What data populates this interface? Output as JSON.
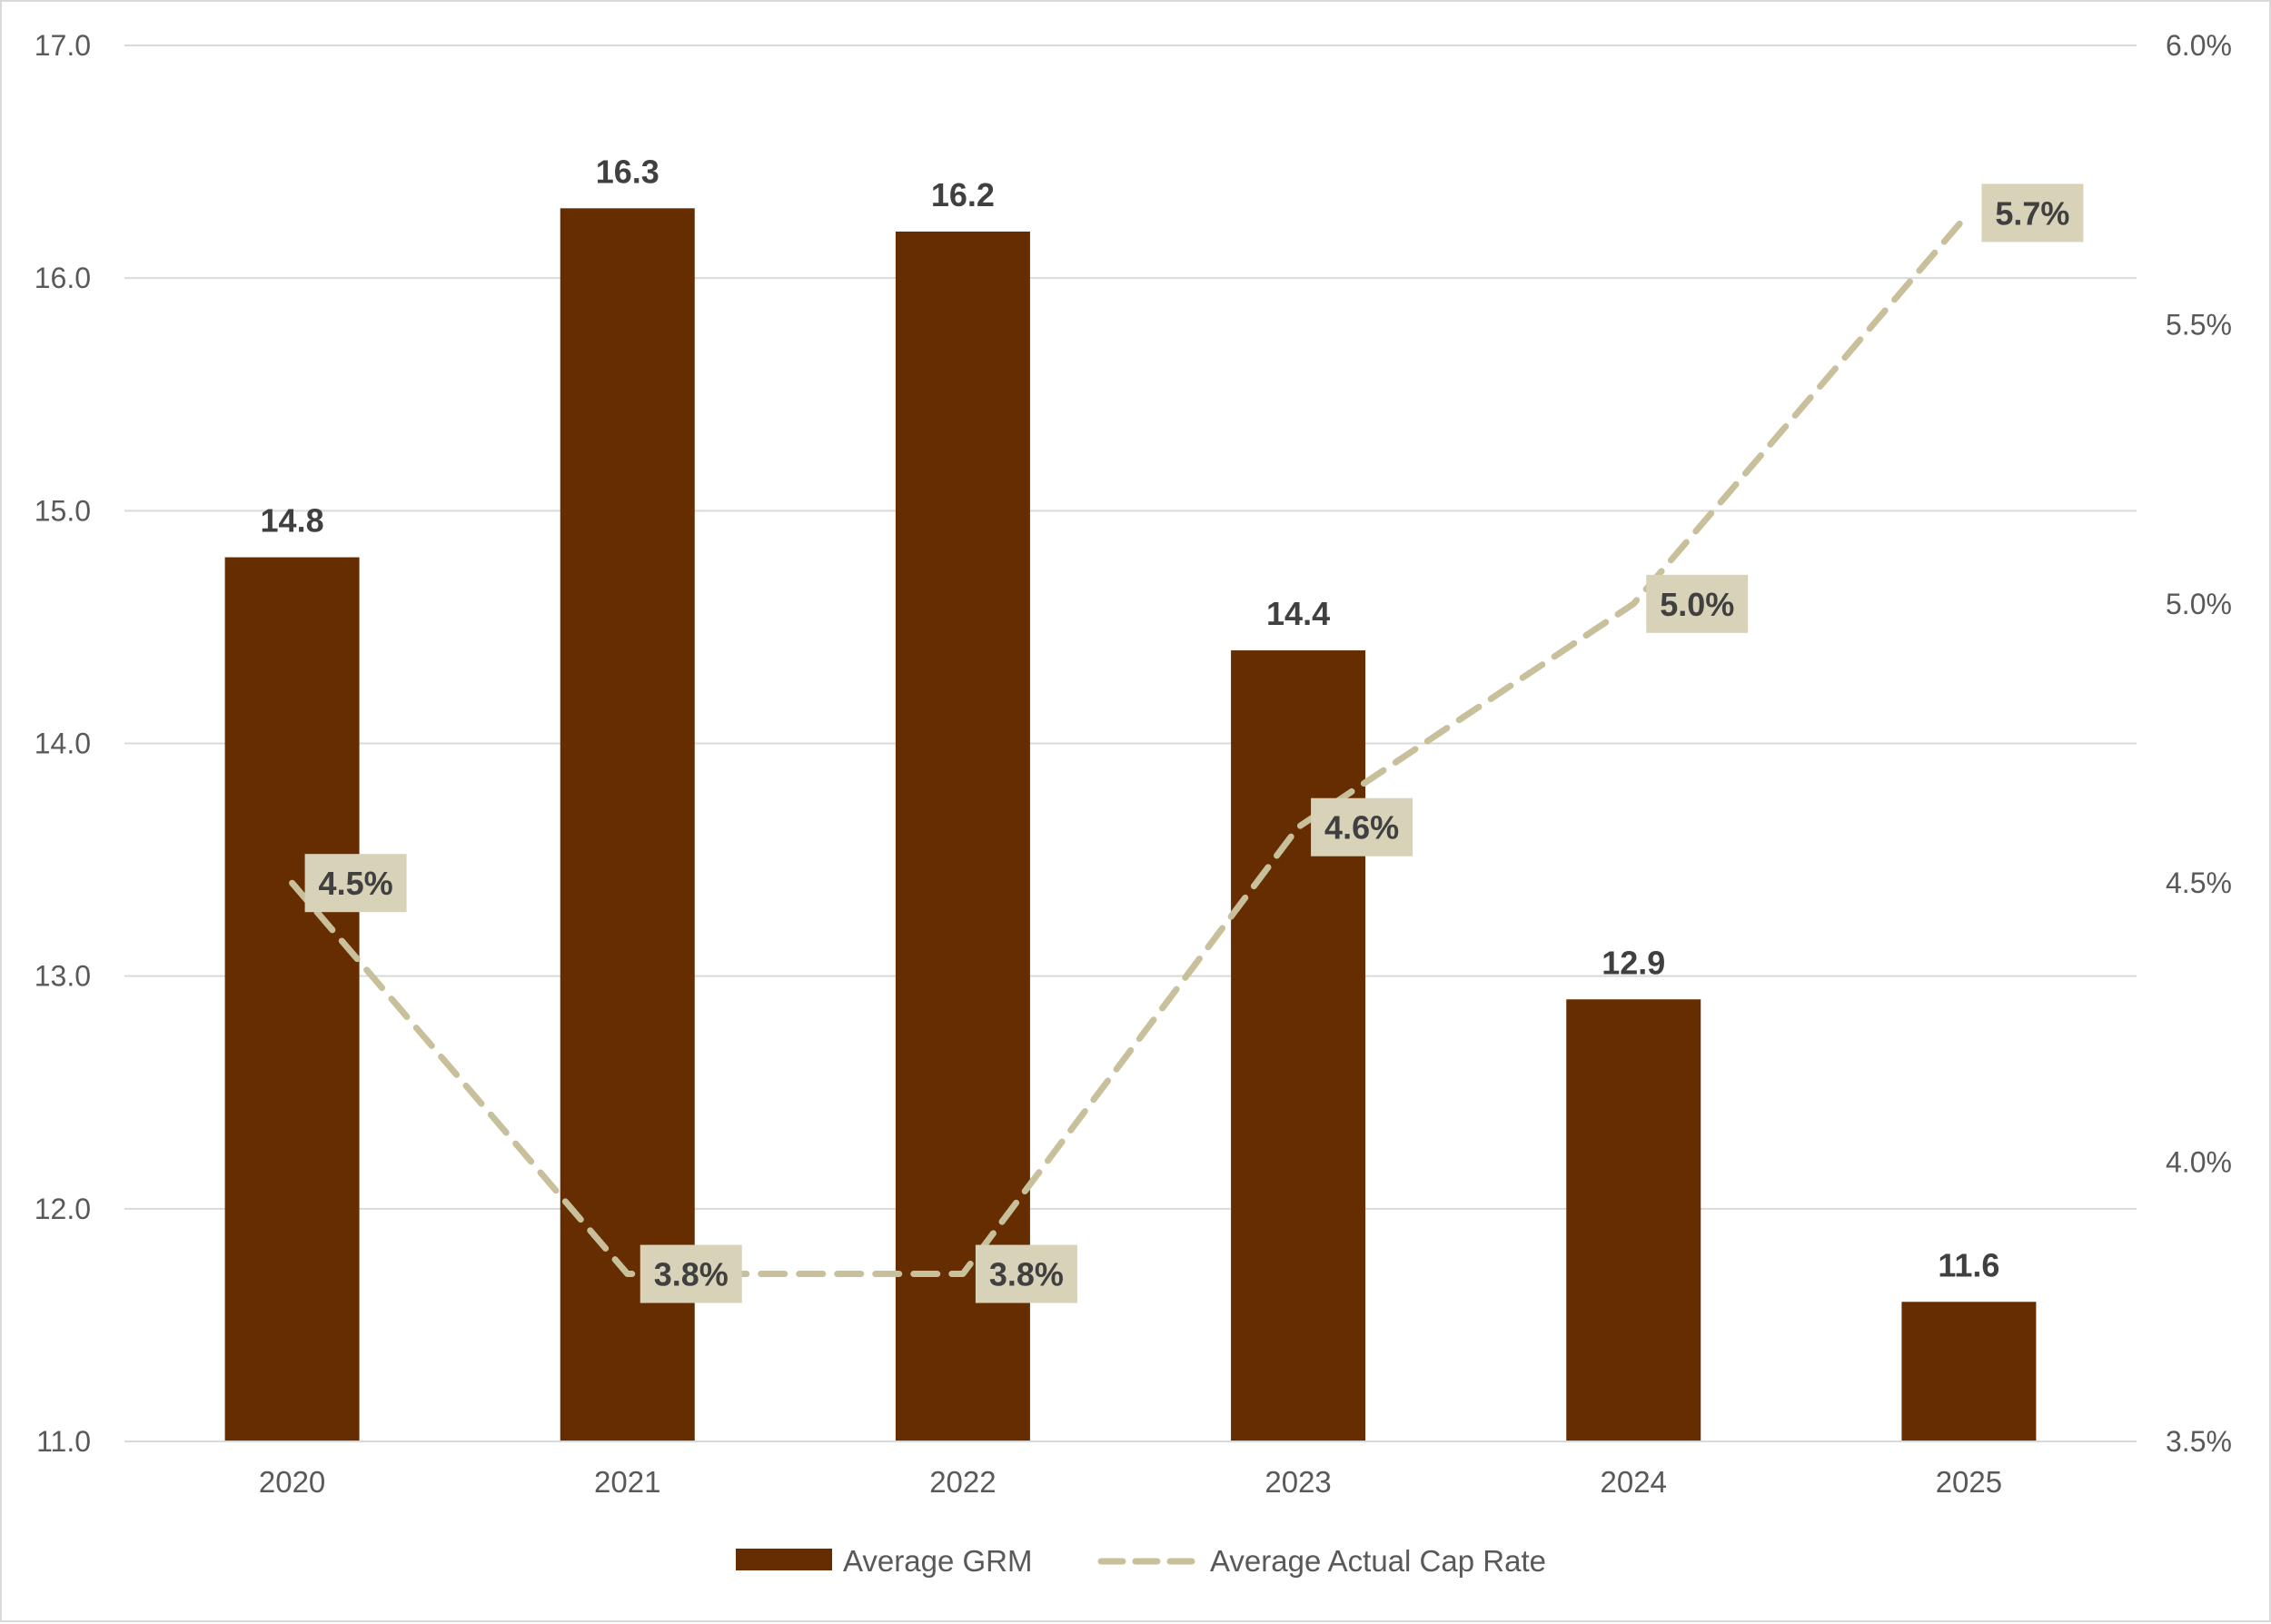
{
  "chart_data": {
    "type": "bar",
    "title": "",
    "xlabel": "",
    "ylabel": "",
    "y2label": "",
    "categories": [
      "2020",
      "2021",
      "2022",
      "2023",
      "2024",
      "2025"
    ],
    "series": [
      {
        "name": "Average GRM",
        "type": "bar",
        "axis": "left",
        "color": "#662d00",
        "values": [
          14.8,
          16.3,
          16.2,
          14.4,
          12.9,
          11.6
        ],
        "labels": [
          "14.8",
          "16.3",
          "16.2",
          "14.4",
          "12.9",
          "11.6"
        ]
      },
      {
        "name": "Average Actual Cap Rate",
        "type": "line",
        "style": "dashed",
        "axis": "right",
        "color": "#c8bf9b",
        "values": [
          4.5,
          3.8,
          3.8,
          4.6,
          5.0,
          5.7
        ],
        "labels": [
          "4.5%",
          "3.8%",
          "3.8%",
          "4.6%",
          "5.0%",
          "5.7%"
        ]
      }
    ],
    "ylim": [
      11.0,
      17.0
    ],
    "y_ticks": [
      "17.0",
      "16.0",
      "15.0",
      "14.0",
      "13.0",
      "12.0",
      "11.0"
    ],
    "y2lim": [
      3.5,
      6.0
    ],
    "y2_ticks": [
      "6.0%",
      "5.5%",
      "5.0%",
      "4.5%",
      "4.0%",
      "3.5%"
    ],
    "grid": true,
    "legend_position": "bottom",
    "line_label_bg": "#d8d2b8"
  }
}
